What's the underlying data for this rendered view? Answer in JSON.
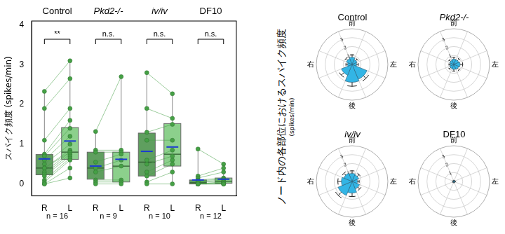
{
  "chart_data": [
    {
      "type": "box",
      "y_label": "スパイク頻度 (spikes/min)",
      "groups": [
        "Control",
        "Pkd2-/-",
        "iv/iv",
        "DF10"
      ],
      "categories": [
        "R",
        "L",
        "R",
        "L",
        "R",
        "L",
        "R",
        "L"
      ],
      "n_labels": [
        "n = 16",
        "n = 9",
        "n = 10",
        "n = 12"
      ],
      "significance": [
        "**",
        "n.s.",
        "n.s.",
        "n.s."
      ],
      "boxes": [
        {
          "q1": 0.23,
          "median": 0.4,
          "q3": 0.74,
          "whisker_low": 0,
          "whisker_high": 2.33,
          "mean": 0.63
        },
        {
          "q1": 0.62,
          "median": 0.8,
          "q3": 1.42,
          "whisker_low": 0.15,
          "whisker_high": 3.1,
          "mean": 1.08
        },
        {
          "q1": 0.12,
          "median": 0.4,
          "q3": 0.8,
          "whisker_low": 0,
          "whisker_high": 1.32,
          "mean": 0.45
        },
        {
          "q1": 0.05,
          "median": 0.45,
          "q3": 0.8,
          "whisker_low": 0,
          "whisker_high": 2.7,
          "mean": 0.62
        },
        {
          "q1": 0.2,
          "median": 0.55,
          "q3": 1.28,
          "whisker_low": 0,
          "whisker_high": 2.8,
          "mean": 0.82
        },
        {
          "q1": 0.45,
          "median": 0.75,
          "q3": 1.52,
          "whisker_low": 0,
          "whisker_high": 2.27,
          "mean": 0.93
        },
        {
          "q1": 0,
          "median": 0.03,
          "q3": 0.1,
          "whisker_low": 0,
          "whisker_high": 0.88,
          "mean": 0.1
        },
        {
          "q1": 0.02,
          "median": 0.07,
          "q3": 0.15,
          "whisker_low": 0,
          "whisker_high": 0.5,
          "mean": 0.12
        }
      ],
      "paired_values": [
        [
          [
            0,
            0.15
          ],
          [
            0,
            0.4
          ],
          [
            0.05,
            0.6
          ],
          [
            0.1,
            0.65
          ],
          [
            0.2,
            0.7
          ],
          [
            0.25,
            0.75
          ],
          [
            0.3,
            0.8
          ],
          [
            0.4,
            0.8
          ],
          [
            0.4,
            0.85
          ],
          [
            0.5,
            1.0
          ],
          [
            0.6,
            1.2
          ],
          [
            0.7,
            1.4
          ],
          [
            0.75,
            1.6
          ],
          [
            1.1,
            1.9
          ],
          [
            1.9,
            2.65
          ],
          [
            2.33,
            3.1
          ]
        ],
        [
          [
            0,
            0
          ],
          [
            0.05,
            0.05
          ],
          [
            0.1,
            0.1
          ],
          [
            0.3,
            0.45
          ],
          [
            0.4,
            0.6
          ],
          [
            0.55,
            0.75
          ],
          [
            0.8,
            0.8
          ],
          [
            0.85,
            0.85
          ],
          [
            1.32,
            2.7
          ]
        ],
        [
          [
            0,
            0
          ],
          [
            0.05,
            0.3
          ],
          [
            0.2,
            0.5
          ],
          [
            0.3,
            0.6
          ],
          [
            0.5,
            0.7
          ],
          [
            0.6,
            0.85
          ],
          [
            1.1,
            1.1
          ],
          [
            1.3,
            1.5
          ],
          [
            1.9,
            1.65
          ],
          [
            2.8,
            2.27
          ]
        ],
        [
          [
            0,
            0
          ],
          [
            0,
            0
          ],
          [
            0,
            0
          ],
          [
            0,
            0.02
          ],
          [
            0,
            0.05
          ],
          [
            0.05,
            0.05
          ],
          [
            0.05,
            0.1
          ],
          [
            0.08,
            0.12
          ],
          [
            0.1,
            0.15
          ],
          [
            0.15,
            0.3
          ],
          [
            0.2,
            0.4
          ],
          [
            0.88,
            0.5
          ]
        ]
      ],
      "color": "#45a045",
      "colors": [
        "#5f9f5f",
        "#8cd08c",
        "#5f9f5f",
        "#8cd08c",
        "#5f9f5f",
        "#8cd08c",
        "#5f9f5f",
        "#8cd08c"
      ],
      "ylim": [
        -0.3,
        4.1
      ],
      "yticks": [
        0,
        1,
        2,
        3,
        4
      ],
      "grid": false
    },
    {
      "type": "polarArea",
      "title": "Control",
      "categories": [
        "前",
        null,
        "左",
        null,
        "後",
        null,
        "右",
        null
      ],
      "values": [
        0.8,
        0.6,
        0.5,
        1.8,
        2.0,
        1.3,
        0.5,
        0.7
      ],
      "errors": [
        0.3,
        0.2,
        0.2,
        0.4,
        0.45,
        0.4,
        0.2,
        0.25
      ],
      "color": "#33b5e5",
      "ylim": [
        0,
        4
      ],
      "yticks": [
        1,
        2,
        3
      ],
      "grid": true
    },
    {
      "type": "polarArea",
      "title": "Pkd2-/-",
      "categories": [
        "前",
        null,
        "左",
        null,
        "後",
        null,
        "右",
        null
      ],
      "values": [
        0.6,
        0.6,
        0.7,
        0.6,
        0.55,
        0.5,
        0.4,
        0.5
      ],
      "errors": [
        0.2,
        0.25,
        0.3,
        0.25,
        0.2,
        0.2,
        0.15,
        0.2
      ],
      "color": "#33b5e5",
      "ylim": [
        0,
        4
      ],
      "yticks": [
        1,
        2,
        3
      ],
      "grid": true
    },
    {
      "type": "polarArea",
      "title": "iv/iv",
      "categories": [
        "前",
        null,
        "左",
        null,
        "後",
        null,
        "右",
        null
      ],
      "values": [
        0.9,
        0.8,
        0.6,
        0.9,
        1.3,
        1.7,
        1.2,
        1.0
      ],
      "errors": [
        0.3,
        0.3,
        0.2,
        0.3,
        0.4,
        0.5,
        0.4,
        0.3
      ],
      "color": "#33b5e5",
      "ylim": [
        0,
        4
      ],
      "yticks": [
        1,
        2,
        3
      ],
      "grid": true
    },
    {
      "type": "polarArea",
      "title": "DF10",
      "categories": [
        "前",
        null,
        "左",
        null,
        "後",
        null,
        "右",
        null
      ],
      "values": [
        0.1,
        0.1,
        0.15,
        0.1,
        0.12,
        0.1,
        0.1,
        0.08
      ],
      "errors": [
        0.05,
        0.05,
        0.05,
        0.05,
        0.05,
        0.05,
        0.05,
        0.05
      ],
      "color": "#33b5e5",
      "ylim": [
        0,
        4
      ],
      "yticks": [
        1,
        2,
        3
      ],
      "grid": true
    }
  ],
  "shared_axis_label": {
    "title": "ノード内の各部位におけるスパイク頻度",
    "unit": "(spikes/min)"
  }
}
